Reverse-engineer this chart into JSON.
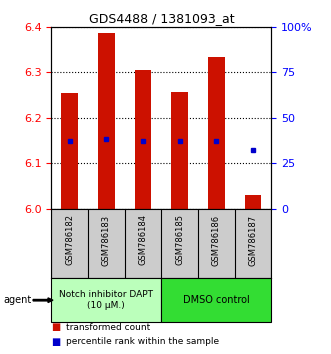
{
  "title": "GDS4488 / 1381093_at",
  "samples": [
    "GSM786182",
    "GSM786183",
    "GSM786184",
    "GSM786185",
    "GSM786186",
    "GSM786187"
  ],
  "bar_values": [
    6.255,
    6.385,
    6.305,
    6.257,
    6.333,
    6.03
  ],
  "bar_bottom": 6.0,
  "percentile_values": [
    6.148,
    6.153,
    6.148,
    6.148,
    6.148,
    6.13
  ],
  "ylim_left": [
    6.0,
    6.4
  ],
  "ylim_right": [
    0,
    100
  ],
  "yticks_left": [
    6.0,
    6.1,
    6.2,
    6.3,
    6.4
  ],
  "yticks_right": [
    0,
    25,
    50,
    75,
    100
  ],
  "yticklabels_right": [
    "0",
    "25",
    "50",
    "75",
    "100%"
  ],
  "bar_color": "#cc1100",
  "percentile_color": "#0000cc",
  "group1_label": "Notch inhibitor DAPT\n(10 μM.)",
  "group2_label": "DMSO control",
  "group1_color": "#bbffbb",
  "group2_color": "#33dd33",
  "legend_bar_label": "transformed count",
  "legend_pct_label": "percentile rank within the sample",
  "agent_label": "agent",
  "bar_width": 0.45,
  "tick_area_bg": "#cccccc"
}
